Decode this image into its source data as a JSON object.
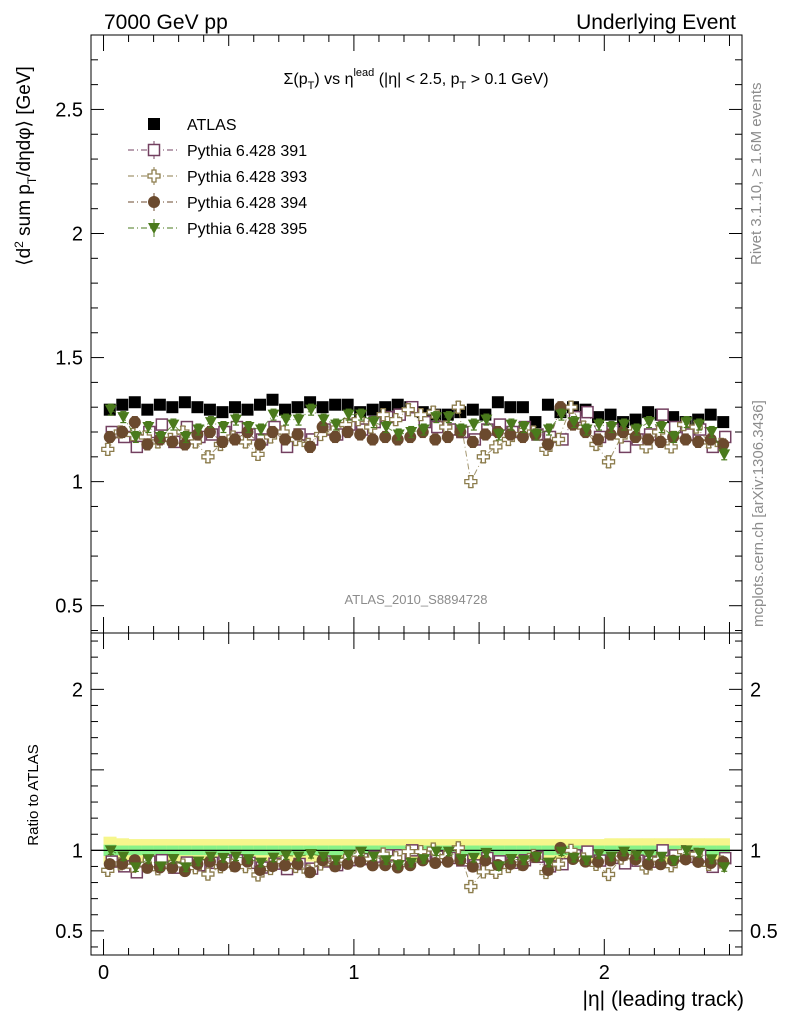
{
  "header": {
    "left": "7000 GeV pp",
    "right": "Underlying Event"
  },
  "side_labels": {
    "rivet": "Rivet 3.1.10, ≥ 1.6M events",
    "mcplots": "mcplots.cern.ch [arXiv:1306.3436]"
  },
  "watermark": "ATLAS_2010_S8894728",
  "colors": {
    "atlas": "#000000",
    "p391": "#734060",
    "p393": "#8c7c4c",
    "p394": "#6b4a2e",
    "p395": "#4a7a1c",
    "band_inner": "#88f288",
    "band_outer": "#f6f68c"
  },
  "chart_data": [
    {
      "type": "scatter",
      "panel": "main",
      "title": "Σ(pT) vs ηlead (|η| < 2.5, pT > 0.1 GeV)",
      "ylabel": "⟨d² sum pT/dηdφ⟩ [GeV]",
      "xlim": [
        -0.05,
        2.55
      ],
      "ylim": [
        0.39,
        2.8
      ],
      "yticks": [
        0.5,
        1,
        1.5,
        2,
        2.5
      ],
      "x": [
        0.025,
        0.075,
        0.125,
        0.175,
        0.225,
        0.275,
        0.325,
        0.375,
        0.425,
        0.475,
        0.525,
        0.575,
        0.625,
        0.675,
        0.725,
        0.775,
        0.825,
        0.875,
        0.925,
        0.975,
        1.025,
        1.075,
        1.125,
        1.175,
        1.225,
        1.275,
        1.325,
        1.375,
        1.425,
        1.475,
        1.525,
        1.575,
        1.625,
        1.675,
        1.725,
        1.775,
        1.825,
        1.875,
        1.925,
        1.975,
        2.025,
        2.075,
        2.125,
        2.175,
        2.225,
        2.275,
        2.325,
        2.375,
        2.425,
        2.475
      ],
      "series": [
        {
          "name": "ATLAS",
          "key": "atlas",
          "marker": "square-filled",
          "values": [
            1.29,
            1.31,
            1.32,
            1.29,
            1.31,
            1.3,
            1.32,
            1.3,
            1.29,
            1.28,
            1.3,
            1.29,
            1.31,
            1.33,
            1.29,
            1.3,
            1.32,
            1.3,
            1.31,
            1.31,
            1.28,
            1.29,
            1.3,
            1.31,
            1.3,
            1.28,
            1.27,
            1.27,
            1.28,
            1.29,
            1.27,
            1.32,
            1.3,
            1.3,
            1.24,
            1.31,
            1.28,
            1.3,
            1.29,
            1.26,
            1.27,
            1.24,
            1.25,
            1.28,
            1.27,
            1.26,
            1.24,
            1.25,
            1.27,
            1.24
          ]
        },
        {
          "name": "Pythia 6.428 391",
          "key": "p391",
          "marker": "square-open",
          "values": [
            1.2,
            1.18,
            1.14,
            1.2,
            1.23,
            1.16,
            1.22,
            1.18,
            1.19,
            1.2,
            1.22,
            1.19,
            1.17,
            1.22,
            1.14,
            1.19,
            1.17,
            1.21,
            1.19,
            1.23,
            1.21,
            1.24,
            1.26,
            1.27,
            1.3,
            1.24,
            1.22,
            1.21,
            1.2,
            1.17,
            1.21,
            1.23,
            1.2,
            1.22,
            1.19,
            1.18,
            1.17,
            1.26,
            1.28,
            1.18,
            1.21,
            1.14,
            1.17,
            1.19,
            1.27,
            1.22,
            1.19,
            1.21,
            1.14,
            1.18
          ]
        },
        {
          "name": "Pythia 6.428 393",
          "key": "p393",
          "marker": "cross-open",
          "values": [
            1.13,
            1.2,
            1.19,
            1.18,
            1.16,
            1.17,
            1.2,
            1.16,
            1.1,
            1.15,
            1.18,
            1.16,
            1.11,
            1.18,
            1.2,
            1.17,
            1.15,
            1.19,
            1.2,
            1.23,
            1.25,
            1.22,
            1.27,
            1.25,
            1.29,
            1.27,
            1.28,
            1.22,
            1.3,
            1.0,
            1.1,
            1.14,
            1.17,
            1.19,
            1.2,
            1.13,
            1.17,
            1.3,
            1.22,
            1.15,
            1.08,
            1.18,
            1.2,
            1.14,
            1.2,
            1.14,
            1.23,
            1.22,
            1.16,
            1.15
          ]
        },
        {
          "name": "Pythia 6.428 394",
          "key": "p394",
          "marker": "circle-filled",
          "values": [
            1.18,
            1.2,
            1.24,
            1.15,
            1.17,
            1.16,
            1.15,
            1.19,
            1.2,
            1.16,
            1.17,
            1.2,
            1.15,
            1.2,
            1.17,
            1.19,
            1.14,
            1.22,
            1.18,
            1.2,
            1.19,
            1.17,
            1.18,
            1.17,
            1.18,
            1.2,
            1.17,
            1.18,
            1.2,
            1.16,
            1.19,
            1.2,
            1.19,
            1.18,
            1.19,
            1.15,
            1.3,
            1.23,
            1.2,
            1.17,
            1.19,
            1.2,
            1.18,
            1.17,
            1.16,
            1.18,
            1.17,
            1.16,
            1.17,
            1.15
          ]
        },
        {
          "name": "Pythia 6.428 395",
          "key": "p395",
          "marker": "triangle-down-filled",
          "values": [
            1.29,
            1.26,
            1.18,
            1.22,
            1.18,
            1.23,
            1.18,
            1.21,
            1.24,
            1.22,
            1.25,
            1.22,
            1.21,
            1.27,
            1.25,
            1.25,
            1.29,
            1.25,
            1.23,
            1.27,
            1.27,
            1.24,
            1.22,
            1.19,
            1.2,
            1.21,
            1.26,
            1.26,
            1.21,
            1.23,
            1.25,
            1.19,
            1.23,
            1.22,
            1.19,
            1.21,
            1.27,
            1.24,
            1.21,
            1.23,
            1.22,
            1.23,
            1.21,
            1.24,
            1.22,
            1.18,
            1.24,
            1.23,
            1.2,
            1.11
          ]
        }
      ]
    },
    {
      "type": "scatter",
      "panel": "ratio",
      "ylabel": "Ratio to ATLAS",
      "xlabel": "|η| (leading track)",
      "xlim": [
        -0.05,
        2.55
      ],
      "ylim": [
        0.35,
        2.35
      ],
      "yticks": [
        0.5,
        1,
        2
      ],
      "xticks": [
        0,
        1,
        2
      ],
      "reference_line": 1.0,
      "band_inner_halfwidth": [
        0.035,
        0.03,
        0.03,
        0.03,
        0.03,
        0.03,
        0.03,
        0.03,
        0.03,
        0.03,
        0.03,
        0.03,
        0.03,
        0.03,
        0.03,
        0.03,
        0.03,
        0.03,
        0.03,
        0.03,
        0.03,
        0.03,
        0.03,
        0.03,
        0.03,
        0.03,
        0.03,
        0.03,
        0.03,
        0.03,
        0.03,
        0.03,
        0.03,
        0.03,
        0.03,
        0.03,
        0.03,
        0.03,
        0.03,
        0.03,
        0.03,
        0.03,
        0.03,
        0.03,
        0.03,
        0.03,
        0.03,
        0.03,
        0.03,
        0.03
      ],
      "band_outer_halfwidth": [
        0.085,
        0.075,
        0.07,
        0.07,
        0.07,
        0.07,
        0.07,
        0.07,
        0.07,
        0.07,
        0.07,
        0.07,
        0.07,
        0.07,
        0.07,
        0.07,
        0.07,
        0.07,
        0.07,
        0.07,
        0.07,
        0.07,
        0.07,
        0.07,
        0.07,
        0.07,
        0.07,
        0.07,
        0.07,
        0.07,
        0.07,
        0.07,
        0.07,
        0.07,
        0.07,
        0.07,
        0.07,
        0.07,
        0.07,
        0.07,
        0.075,
        0.075,
        0.075,
        0.075,
        0.075,
        0.075,
        0.075,
        0.075,
        0.075,
        0.075
      ]
    }
  ]
}
